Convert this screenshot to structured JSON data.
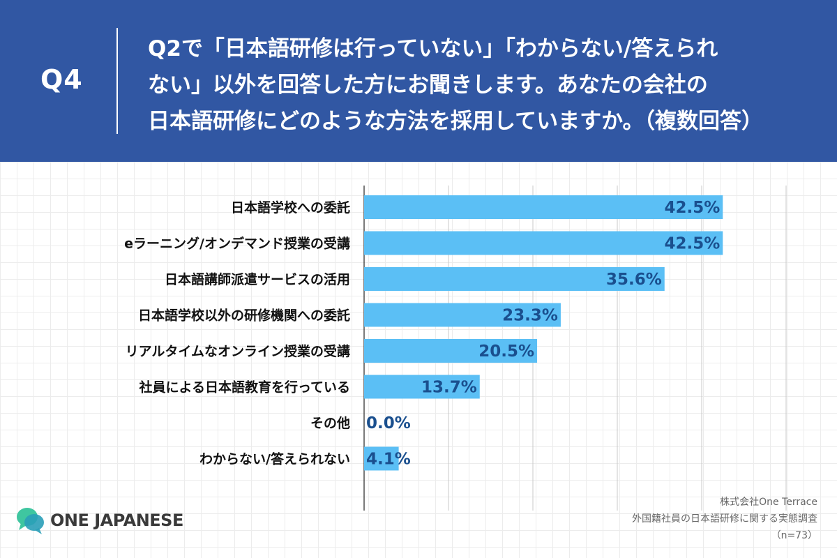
{
  "header": {
    "qnum": "Q4",
    "question_lines": [
      "Q2で「日本語研修は行っていない」「わからない/答えられ",
      "ない」以外を回答した方にお聞きします。あなたの会社の",
      "日本語研修にどのような方法を採用していますか。（複数回答）"
    ]
  },
  "chart_data": {
    "type": "bar",
    "orientation": "horizontal",
    "categories": [
      "日本語学校への委託",
      "eラーニング/オンデマンド授業の受講",
      "日本語講師派遣サービスの活用",
      "日本語学校以外の研修機関への委託",
      "リアルタイムなオンライン授業の受講",
      "社員による日本語教育を行っている",
      "その他",
      "わからない/答えられない"
    ],
    "values": [
      42.5,
      42.5,
      35.6,
      23.3,
      20.5,
      13.7,
      0.0,
      4.1
    ],
    "value_labels": [
      "42.5%",
      "42.5%",
      "35.6%",
      "23.3%",
      "20.5%",
      "13.7%",
      "0.0%",
      "4.1%"
    ],
    "xlim": [
      0,
      50
    ],
    "grid": true,
    "bar_color": "#5bbff5",
    "value_label_color": "#1a4f8e"
  },
  "footer": {
    "logo_text": "ONE JAPANESE",
    "logo_icon": "speech-bubbles-icon",
    "source_lines": [
      "株式会社One Terrace",
      "外国籍社員の日本語研修に関する実態調査",
      "（n=73）"
    ]
  },
  "colors": {
    "header_bg": "#3157a3",
    "bar": "#5bbff5",
    "logo_green": "#3fc6a0",
    "logo_teal": "#2a9fb8"
  }
}
